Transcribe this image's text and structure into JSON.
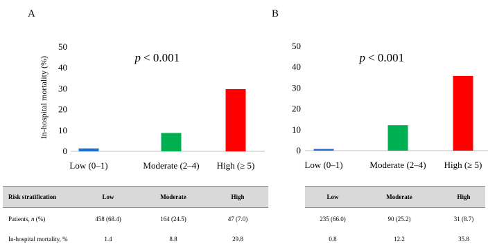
{
  "panels": [
    {
      "label": "A"
    },
    {
      "label": "B"
    }
  ],
  "chart_data": [
    {
      "type": "bar",
      "panel": "A",
      "annotation": "p < 0.001",
      "ylabel": "In-hospital mortality (%)",
      "xlabel": "",
      "ylim": [
        0,
        50
      ],
      "yticks": [
        0,
        10,
        20,
        30,
        40,
        50
      ],
      "categories": [
        "Low (0–1)",
        "Moderate (2–4)",
        "High (≥ 5)"
      ],
      "values": [
        1.4,
        8.8,
        29.8
      ],
      "colors": [
        "#1f6fd1",
        "#00b050",
        "#ff0000"
      ],
      "grid": false
    },
    {
      "type": "bar",
      "panel": "B",
      "annotation": "p < 0.001",
      "ylabel": "",
      "xlabel": "",
      "ylim": [
        0,
        50
      ],
      "yticks": [
        0,
        10,
        20,
        30,
        40,
        50
      ],
      "categories": [
        "Low (0–1)",
        "Moderate (2–4)",
        "High (≥ 5)"
      ],
      "values": [
        0.8,
        12.2,
        35.8
      ],
      "colors": [
        "#1f6fd1",
        "#00b050",
        "#ff0000"
      ],
      "grid": false
    }
  ],
  "tables": {
    "left": {
      "header": [
        "Risk stratification",
        "Low",
        "Moderate",
        "High"
      ],
      "rows": [
        {
          "label_main": "Patients, ",
          "label_italic": "n",
          "label_tail": " (%)",
          "values": [
            "458 (68.4)",
            "164 (24.5)",
            "47 (7.0)"
          ]
        },
        {
          "label_main": "In-hospital mortality, ",
          "label_italic": "",
          "label_tail": " %",
          "values": [
            "1.4",
            "8.8",
            "29.8"
          ]
        }
      ]
    },
    "right": {
      "header": [
        "Low",
        "Moderate",
        "High"
      ],
      "rows": [
        {
          "values": [
            "235 (66.0)",
            "90 (25.2)",
            "31 (8.7)"
          ]
        },
        {
          "values": [
            "0.8",
            "12.2",
            "35.8"
          ]
        }
      ]
    }
  }
}
